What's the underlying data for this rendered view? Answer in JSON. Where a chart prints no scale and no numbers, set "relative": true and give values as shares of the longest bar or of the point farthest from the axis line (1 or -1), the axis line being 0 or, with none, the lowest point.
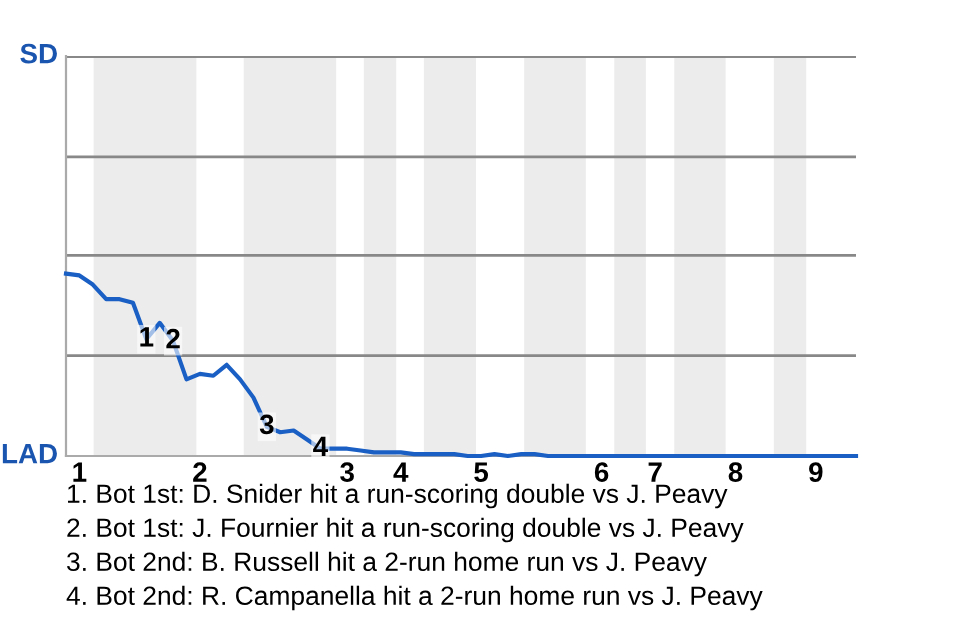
{
  "chart_data": {
    "type": "line",
    "relative": true,
    "categories": [
      null,
      "1",
      null,
      null,
      null,
      null,
      null,
      null,
      null,
      null,
      "2",
      null,
      null,
      null,
      null,
      null,
      null,
      null,
      null,
      null,
      null,
      "3",
      null,
      null,
      null,
      "4",
      null,
      null,
      null,
      null,
      null,
      "5",
      null,
      null,
      null,
      null,
      null,
      null,
      null,
      null,
      "6",
      null,
      null,
      null,
      "7",
      null,
      null,
      null,
      null,
      null,
      "8",
      null,
      null,
      null,
      null,
      null,
      "9",
      null,
      null,
      null
    ],
    "series": [
      {
        "color": "#1a5fc4",
        "values": [
          1,
          0.99,
          0.94,
          0.86,
          0.86,
          0.84,
          0.64,
          0.73,
          0.63,
          0.42,
          0.45,
          0.44,
          0.5,
          0.42,
          0.32,
          0.16,
          0.13,
          0.14,
          0.09,
          0.04,
          0.04,
          0.04,
          0.03,
          0.02,
          0.02,
          0.02,
          0.01,
          0.01,
          0.01,
          0.01,
          0,
          0,
          0.01,
          0,
          0.01,
          0.01,
          0,
          0,
          0,
          0,
          0,
          0,
          0,
          0,
          0,
          0,
          0,
          0,
          0,
          0,
          0,
          0,
          0,
          0,
          0,
          0,
          0,
          0,
          0,
          0
        ]
      }
    ],
    "marker": "none",
    "line_style": "solid",
    "ref_lines": [
      {
        "axis": "y",
        "value": 0.55,
        "color": "#888888"
      },
      {
        "axis": "y",
        "value": 1.1,
        "color": "#888888"
      },
      {
        "axis": "y",
        "value": 1.64,
        "color": "#888888"
      },
      {
        "axis": "y",
        "value": 2.19,
        "color": "#888888"
      }
    ],
    "annotations": [
      "SD",
      "LAD",
      {
        "text": "1",
        "y": 0.64
      },
      {
        "text": "2",
        "y": 0.63
      },
      {
        "text": "3",
        "y": 0.16
      },
      {
        "text": "4",
        "y": 0.04
      },
      "1. Bot 1st: D. Snider hit a run-scoring double vs J. Peavy",
      "2. Bot 1st: J. Fournier hit a run-scoring double vs J. Peavy",
      "3. Bot 2nd: B. Russell hit a 2-run home run vs J. Peavy",
      "4. Bot 2nd: R. Campanella hit a 2-run home run vs J. Peavy"
    ]
  }
}
